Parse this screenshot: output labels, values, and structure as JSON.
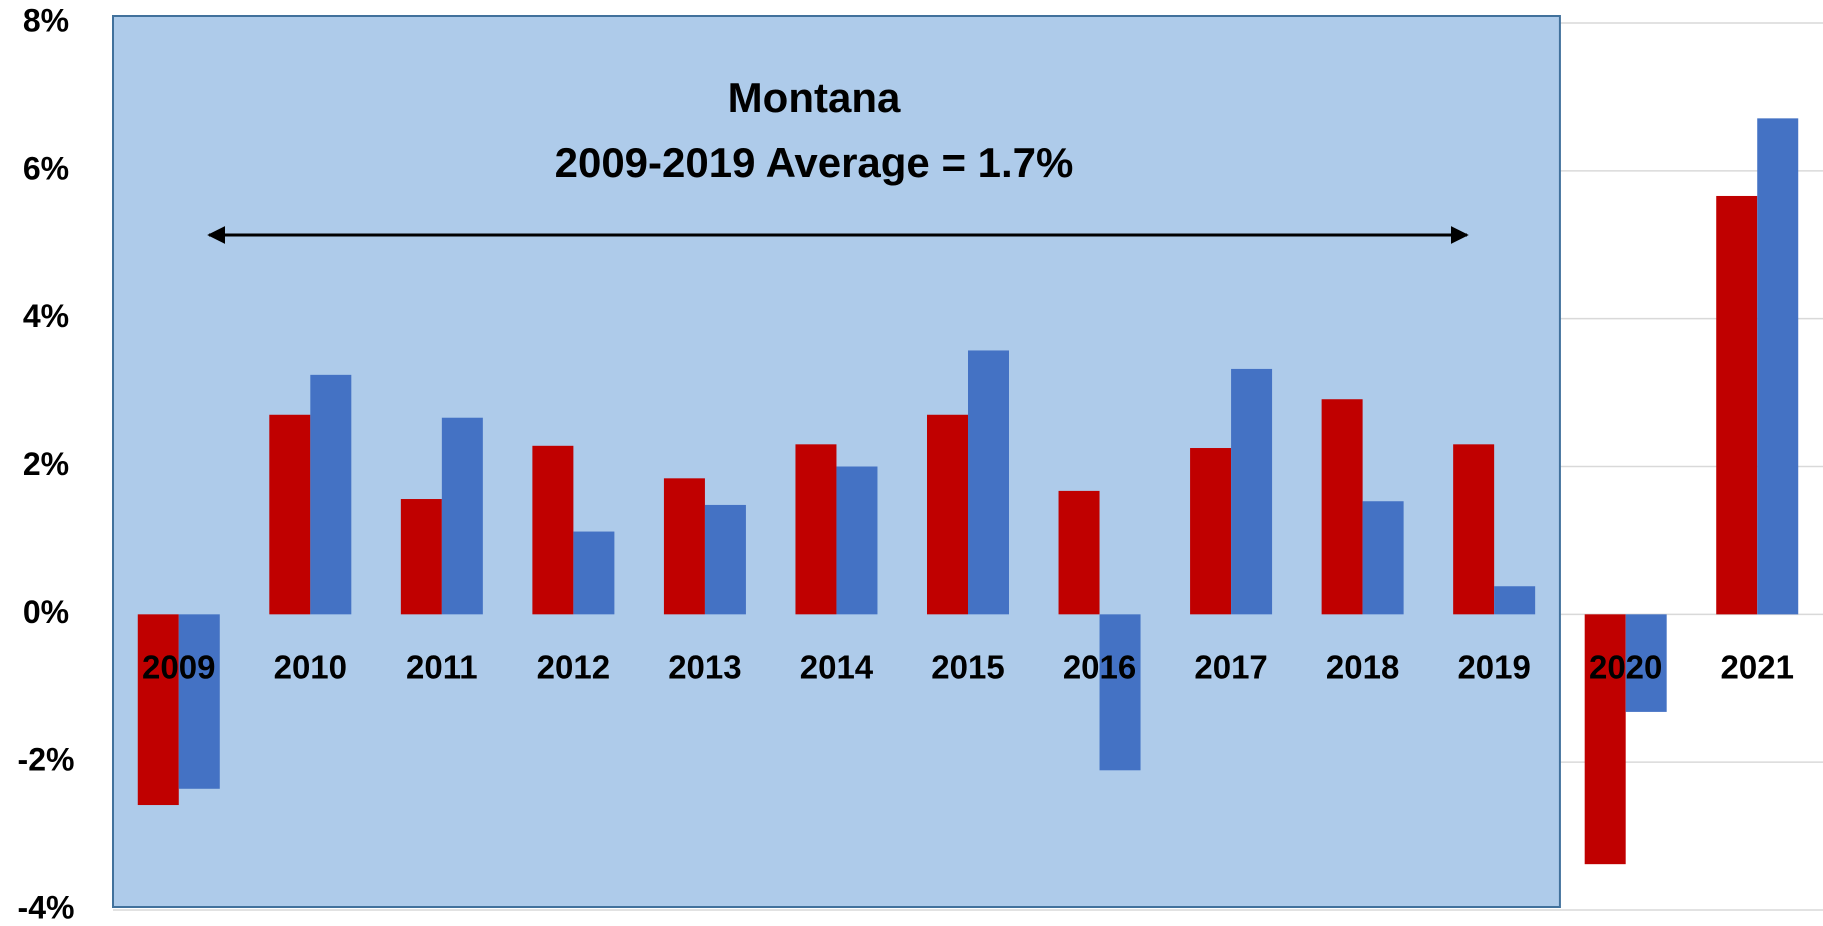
{
  "chart_data": {
    "type": "bar",
    "annotations": [
      "Montana",
      "2009-2019 Average = 1.7%"
    ],
    "categories": [
      "2009",
      "2010",
      "2011",
      "2012",
      "2013",
      "2014",
      "2015",
      "2016",
      "2017",
      "2018",
      "2019",
      "2020",
      "2021"
    ],
    "series": [
      {
        "color": "#c00000",
        "values": [
          -2.58,
          2.7,
          1.56,
          2.28,
          1.84,
          2.3,
          2.7,
          1.67,
          2.25,
          2.91,
          2.3,
          -3.38,
          5.66
        ]
      },
      {
        "color": "#4472c4",
        "values": [
          -2.36,
          3.24,
          2.66,
          1.12,
          1.48,
          2.0,
          3.57,
          -2.11,
          3.32,
          1.53,
          0.38,
          -1.32,
          6.71
        ]
      }
    ],
    "ylim": [
      -4,
      8
    ],
    "yticks": [
      {
        "value": -4,
        "label": "-4%"
      },
      {
        "value": -2,
        "label": "-2%"
      },
      {
        "value": 0,
        "label": "0%"
      },
      {
        "value": 2,
        "label": "2%"
      },
      {
        "value": 4,
        "label": "4%"
      },
      {
        "value": 6,
        "label": "6%"
      },
      {
        "value": 8,
        "label": "8%"
      }
    ],
    "grid": true
  }
}
